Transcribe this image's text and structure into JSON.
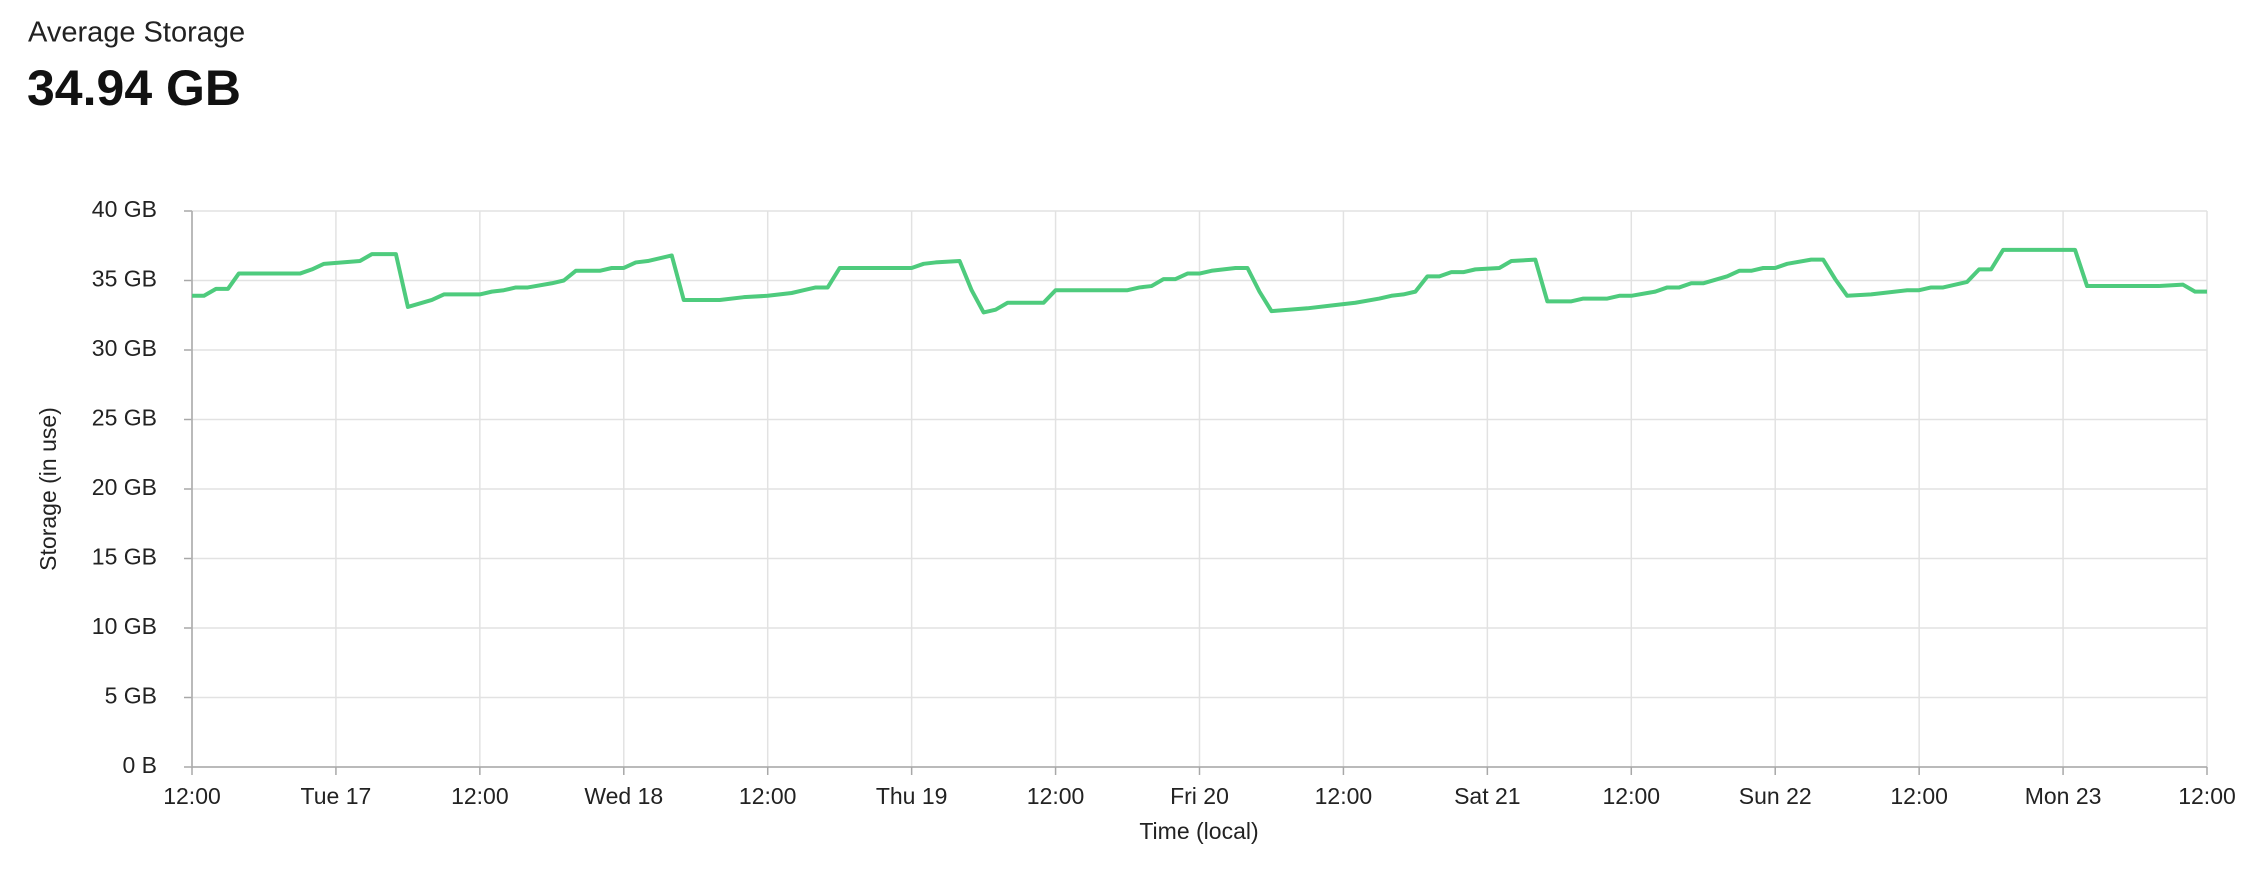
{
  "summary": {
    "label": "Average Storage",
    "value": "34.94 GB"
  },
  "chart_data": {
    "type": "line",
    "xlabel": "Time (local)",
    "ylabel": "Storage (in use)",
    "x": [
      0,
      1,
      2,
      3,
      3.9,
      9,
      10,
      11,
      14,
      15,
      17,
      18,
      20,
      21,
      24,
      25,
      26,
      27,
      28,
      30,
      31,
      32,
      34,
      35,
      36,
      37,
      38,
      40,
      41,
      44,
      46,
      48,
      50,
      51,
      52,
      53,
      54,
      60,
      61,
      62,
      64,
      65,
      66,
      67,
      68,
      71,
      72,
      78,
      79,
      80,
      81,
      82,
      83,
      84,
      85,
      87,
      88,
      89,
      90,
      93,
      95,
      97,
      99,
      100,
      101,
      102,
      103,
      104,
      105,
      106,
      107,
      109,
      110,
      112,
      113,
      115,
      116,
      118,
      119,
      120,
      122,
      123,
      124,
      125,
      126,
      128,
      129,
      130,
      131,
      132,
      133,
      135,
      136,
      137,
      138,
      140,
      143,
      144,
      145,
      146,
      148,
      149,
      150,
      151,
      157,
      158,
      164,
      166,
      167,
      168
    ],
    "series": [
      {
        "name": "Storage",
        "color": "#4ecb7d",
        "values": [
          33.9,
          33.9,
          34.4,
          34.4,
          35.5,
          35.5,
          35.8,
          36.2,
          36.4,
          36.9,
          36.9,
          33.1,
          33.6,
          34.0,
          34.0,
          34.2,
          34.3,
          34.5,
          34.5,
          34.8,
          35.0,
          35.7,
          35.7,
          35.9,
          35.9,
          36.3,
          36.4,
          36.8,
          33.6,
          33.6,
          33.8,
          33.9,
          34.1,
          34.3,
          34.5,
          34.5,
          35.9,
          35.9,
          36.2,
          36.3,
          36.4,
          34.3,
          32.7,
          32.9,
          33.4,
          33.4,
          34.3,
          34.3,
          34.5,
          34.6,
          35.1,
          35.1,
          35.5,
          35.5,
          35.7,
          35.9,
          35.9,
          34.2,
          32.8,
          33.0,
          33.2,
          33.4,
          33.7,
          33.9,
          34.0,
          34.2,
          35.3,
          35.3,
          35.6,
          35.6,
          35.8,
          35.9,
          36.4,
          36.5,
          33.5,
          33.5,
          33.7,
          33.7,
          33.9,
          33.9,
          34.2,
          34.5,
          34.5,
          34.8,
          34.8,
          35.3,
          35.7,
          35.7,
          35.9,
          35.9,
          36.2,
          36.5,
          36.5,
          35.1,
          33.9,
          34.0,
          34.3,
          34.3,
          34.5,
          34.5,
          34.9,
          35.8,
          35.8,
          37.2,
          37.2,
          34.6,
          34.6,
          34.7,
          34.2,
          34.2
        ]
      }
    ],
    "xlim": [
      0,
      168
    ],
    "xticks": [
      {
        "value": 0,
        "label": "12:00"
      },
      {
        "value": 12,
        "label": "Tue 17"
      },
      {
        "value": 24,
        "label": "12:00"
      },
      {
        "value": 36,
        "label": "Wed 18"
      },
      {
        "value": 48,
        "label": "12:00"
      },
      {
        "value": 60,
        "label": "Thu 19"
      },
      {
        "value": 72,
        "label": "12:00"
      },
      {
        "value": 84,
        "label": "Fri 20"
      },
      {
        "value": 96,
        "label": "12:00"
      },
      {
        "value": 108,
        "label": "Sat 21"
      },
      {
        "value": 120,
        "label": "12:00"
      },
      {
        "value": 132,
        "label": "Sun 22"
      },
      {
        "value": 144,
        "label": "12:00"
      },
      {
        "value": 156,
        "label": "Mon 23"
      },
      {
        "value": 168,
        "label": "12:00"
      }
    ],
    "ylim": [
      0,
      40
    ],
    "yticks": [
      {
        "value": 0,
        "label": "0 B"
      },
      {
        "value": 5,
        "label": "5 GB"
      },
      {
        "value": 10,
        "label": "10 GB"
      },
      {
        "value": 15,
        "label": "15 GB"
      },
      {
        "value": 20,
        "label": "20 GB"
      },
      {
        "value": 25,
        "label": "25 GB"
      },
      {
        "value": 30,
        "label": "30 GB"
      },
      {
        "value": 35,
        "label": "35 GB"
      },
      {
        "value": 40,
        "label": "40 GB"
      }
    ],
    "grid": true
  }
}
